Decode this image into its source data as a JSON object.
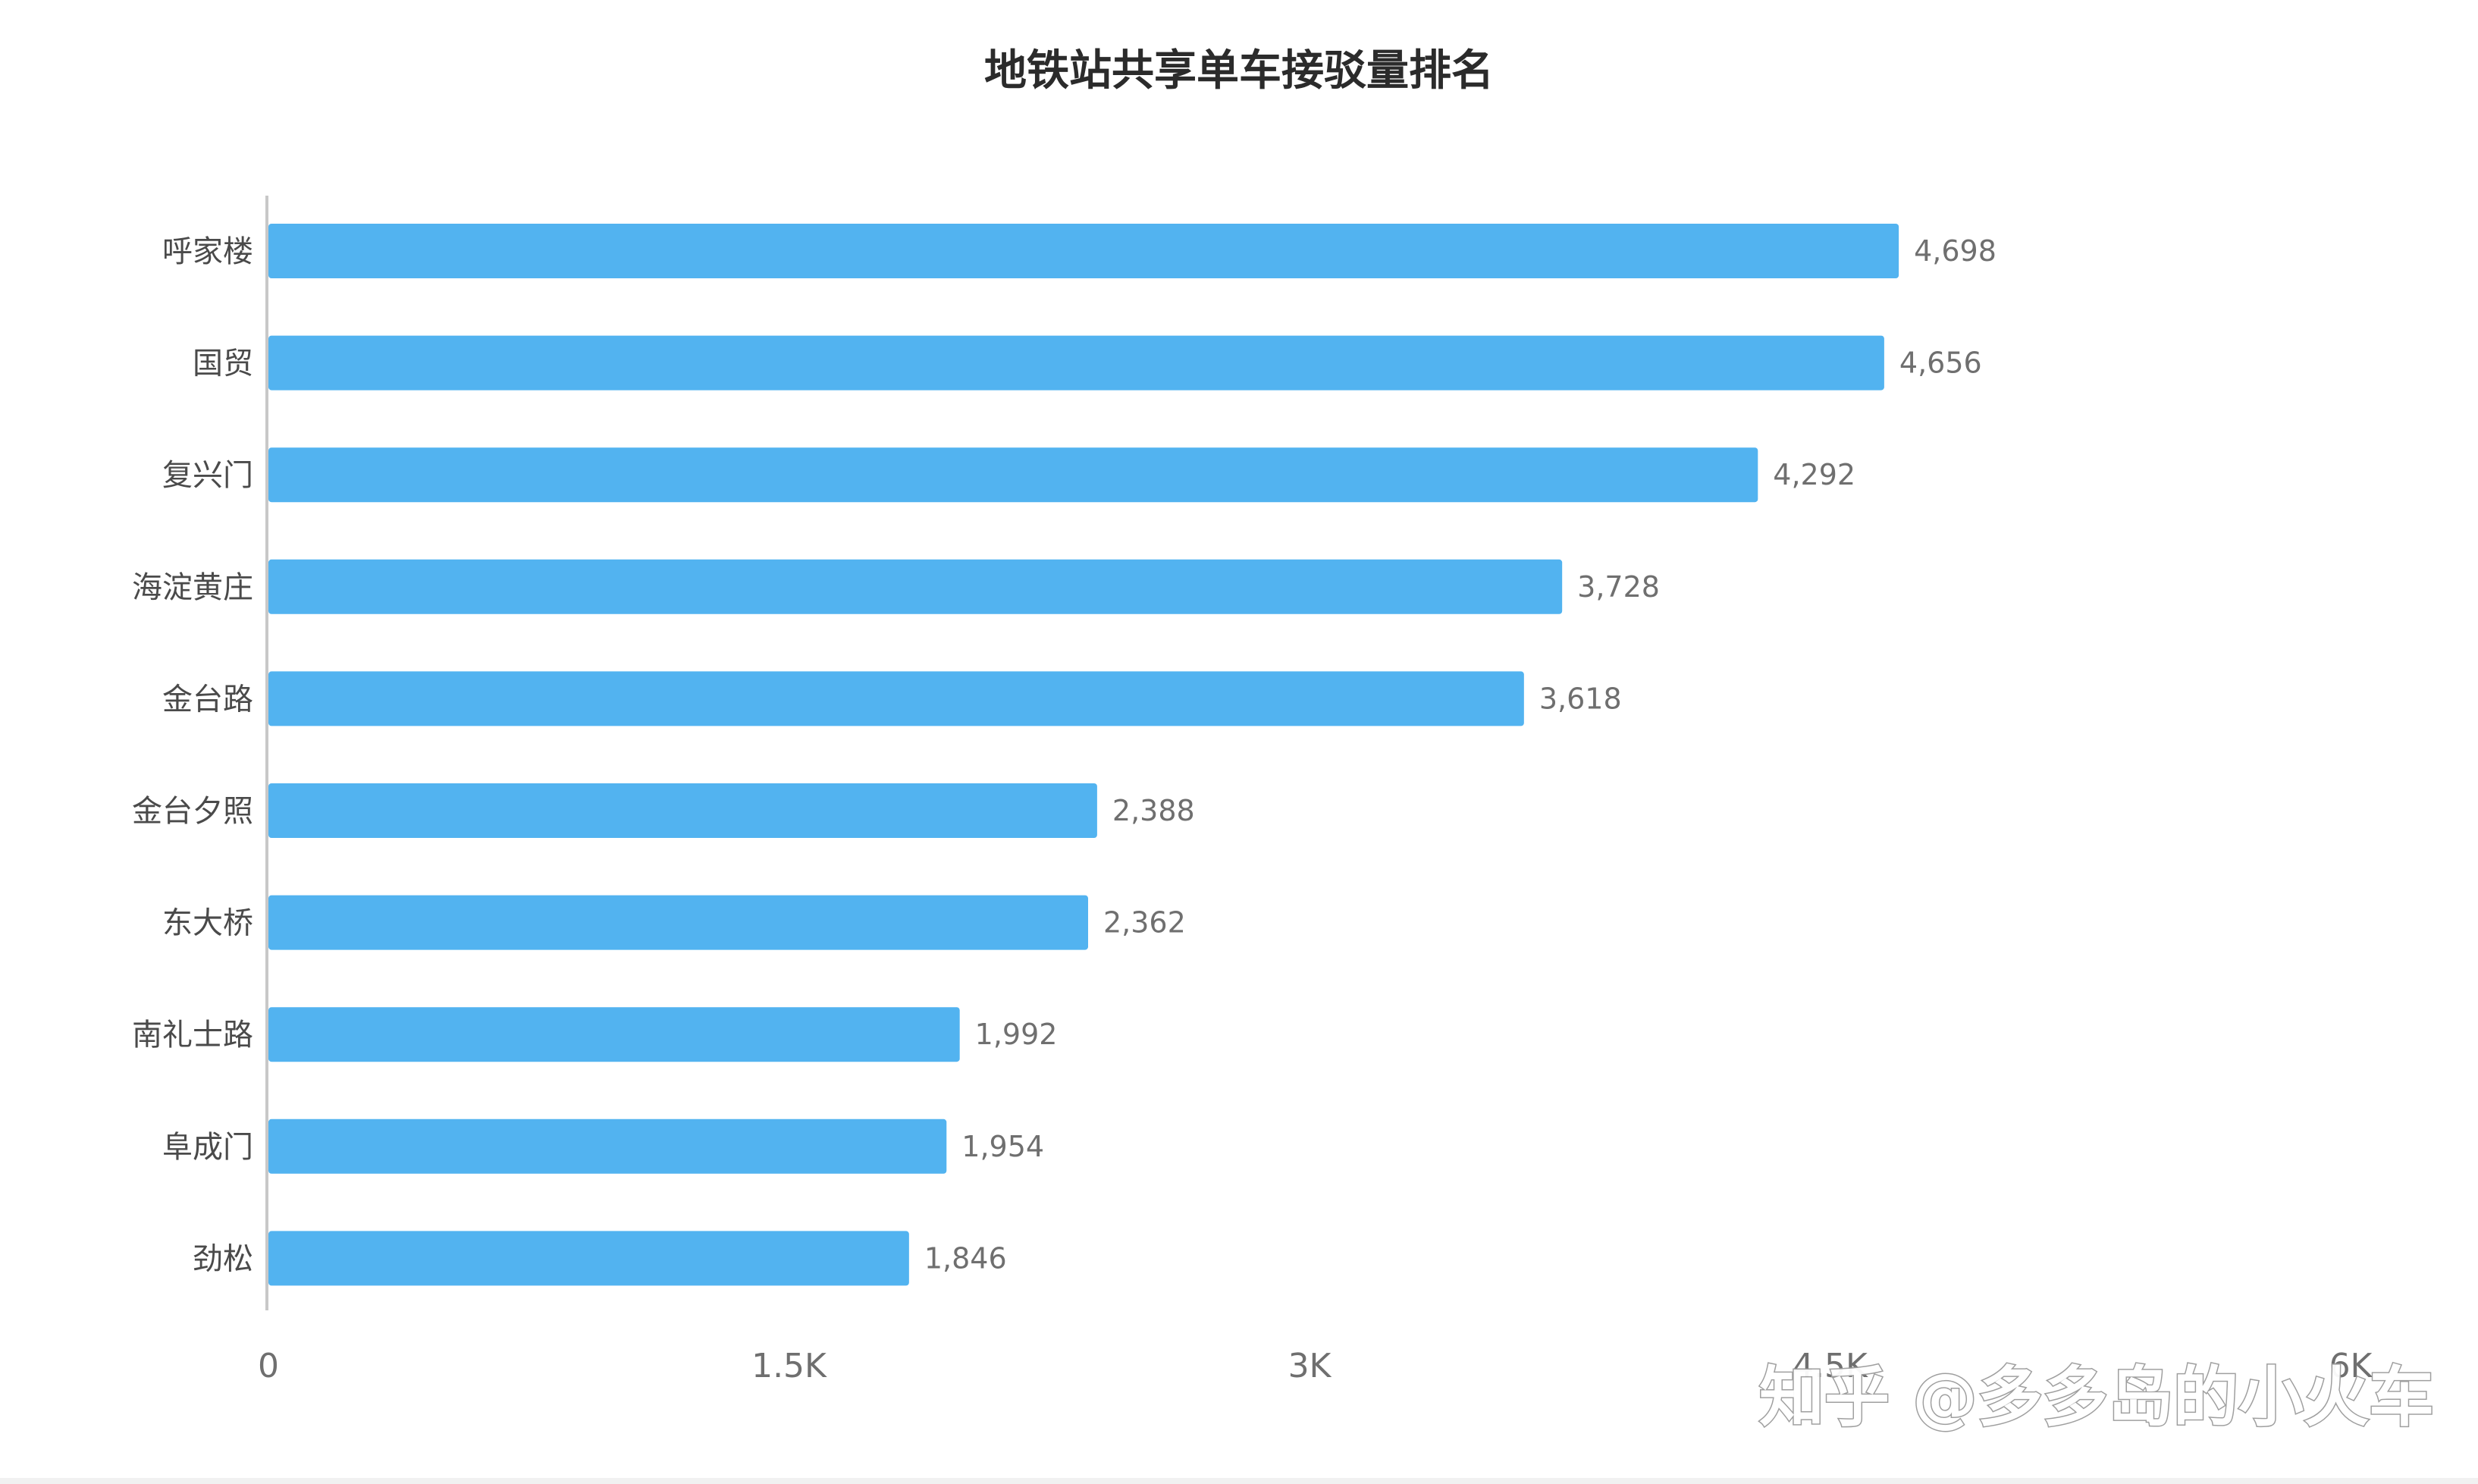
{
  "watermark": "知乎 @多多岛的小火车",
  "colors": {
    "bar": "#52b3f0",
    "axis": "#c8c8c8",
    "background": "#ffffff"
  },
  "chart_data": {
    "type": "bar",
    "orientation": "horizontal",
    "title": "地铁站共享单车接驳量排名",
    "xlabel": "",
    "ylabel": "",
    "categories": [
      "呼家楼",
      "国贸",
      "复兴门",
      "海淀黄庄",
      "金台路",
      "金台夕照",
      "东大桥",
      "南礼士路",
      "阜成门",
      "劲松"
    ],
    "values": [
      4698,
      4656,
      4292,
      3728,
      3618,
      2388,
      2362,
      1992,
      1954,
      1846
    ],
    "value_labels": [
      "4,698",
      "4,656",
      "4,292",
      "3,728",
      "3,618",
      "2,388",
      "2,362",
      "1,992",
      "1,954",
      "1,846"
    ],
    "xlim": [
      0,
      6000
    ],
    "x_ticks": [
      0,
      1500,
      3000,
      4500,
      6000
    ],
    "x_tick_labels": [
      "0",
      "1.5K",
      "3K",
      "4.5K",
      "6K"
    ],
    "grid": false,
    "legend": "none"
  }
}
